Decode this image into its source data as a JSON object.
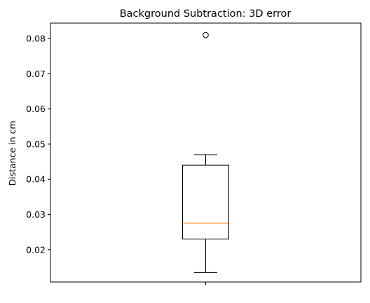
{
  "chart_data": {
    "type": "box",
    "title": "Background Subtraction: 3D error",
    "xlabel": "",
    "ylabel": "Distance in cm",
    "ylim": [
      0.0108,
      0.0844
    ],
    "yticks": [
      0.02,
      0.03,
      0.04,
      0.05,
      0.06,
      0.07,
      0.08
    ],
    "ytick_labels": [
      "0.02",
      "0.03",
      "0.04",
      "0.05",
      "0.06",
      "0.07",
      "0.08"
    ],
    "grid": false,
    "boxes": [
      {
        "whisker_low": 0.0135,
        "q1": 0.023,
        "median": 0.0275,
        "q3": 0.044,
        "whisker_high": 0.047,
        "outliers": [
          0.081
        ]
      }
    ],
    "colors": {
      "box": "#000000",
      "median": "#ff7f0e",
      "outlier_edge": "#000000"
    }
  }
}
